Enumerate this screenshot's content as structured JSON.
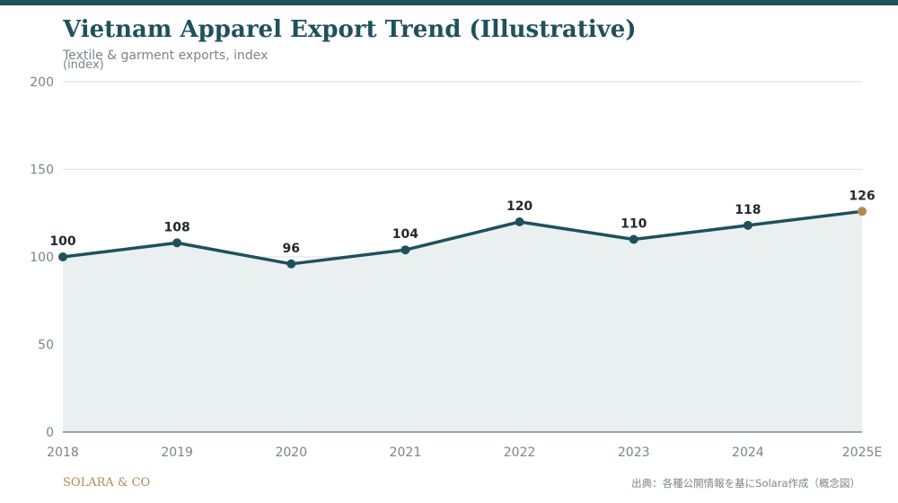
{
  "header": {
    "title": "Vietnam Apparel Export Trend (Illustrative)",
    "subtitle": "Textile & garment exports, index"
  },
  "footer": {
    "brand": "SOLARA & CO",
    "source": "出典：各種公開情報を基にSolara作成（概念図）"
  },
  "colors": {
    "accent": "#1f515c",
    "highlight": "#b08a52",
    "area_fill": "#e9f0ef",
    "grid": "#dadfe0",
    "axis_text": "#7a8586",
    "label_text": "#222a2b"
  },
  "chart_data": {
    "type": "line",
    "ylabel": "(index)",
    "categories": [
      "2018",
      "2019",
      "2020",
      "2021",
      "2022",
      "2023",
      "2024",
      "2025E"
    ],
    "values": [
      100,
      108,
      96,
      104,
      120,
      110,
      118,
      126
    ],
    "highlight_index": 7,
    "ylim": [
      0,
      200
    ],
    "yticks": [
      0,
      50,
      100,
      150,
      200
    ],
    "grid": true,
    "area_fill": true,
    "data_labels": true
  }
}
